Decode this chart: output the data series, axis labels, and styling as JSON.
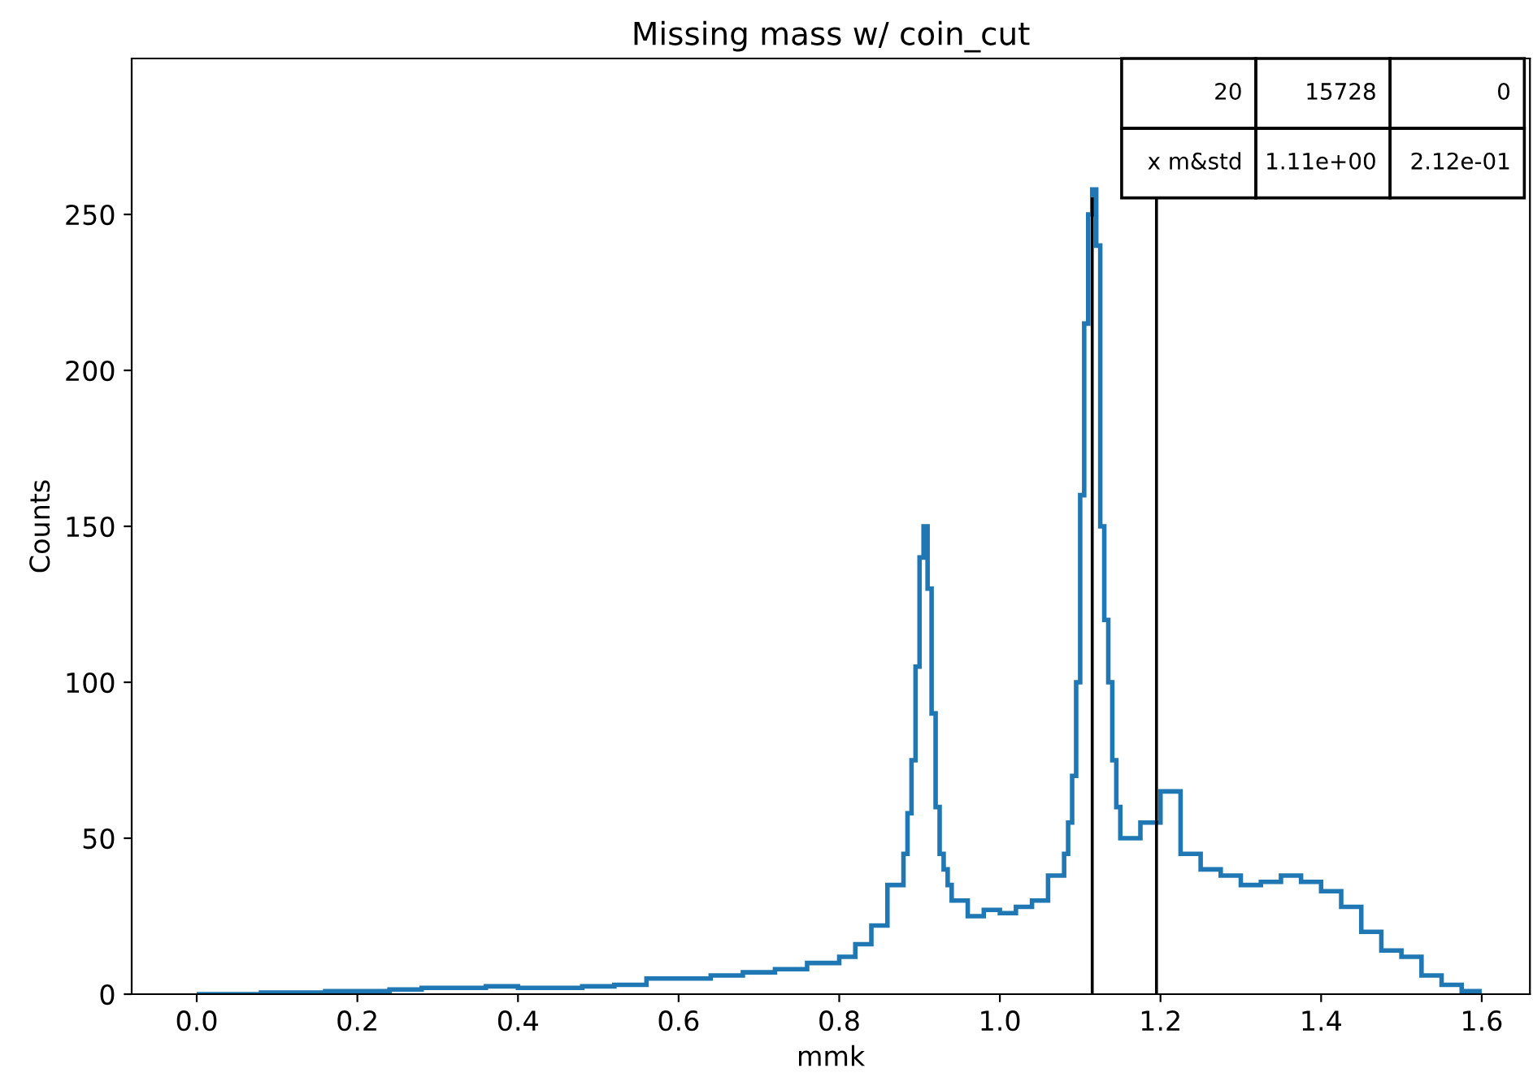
{
  "chart_data": {
    "type": "histogram",
    "title": "Missing mass w/ coin_cut",
    "xlabel": "mmk",
    "ylabel": "Counts",
    "bins": [
      0,
      0.04,
      0.08,
      0.12,
      0.16,
      0.2,
      0.24,
      0.28,
      0.32,
      0.36,
      0.4,
      0.44,
      0.48,
      0.52,
      0.56,
      0.6,
      0.64,
      0.68,
      0.72,
      0.76,
      0.8,
      0.82,
      0.84,
      0.86,
      0.88,
      0.885,
      0.89,
      0.895,
      0.9,
      0.905,
      0.91,
      0.915,
      0.92,
      0.925,
      0.93,
      0.935,
      0.94,
      0.96,
      0.98,
      1.0,
      1.02,
      1.04,
      1.06,
      1.08,
      1.085,
      1.09,
      1.095,
      1.1,
      1.105,
      1.11,
      1.115,
      1.12,
      1.125,
      1.13,
      1.135,
      1.14,
      1.145,
      1.15,
      1.175,
      1.2,
      1.225,
      1.25,
      1.275,
      1.3,
      1.325,
      1.35,
      1.375,
      1.4,
      1.425,
      1.45,
      1.475,
      1.5,
      1.525,
      1.55,
      1.575,
      1.6
    ],
    "values": [
      0,
      0,
      0.5,
      0.5,
      1,
      1,
      1.5,
      2,
      2,
      2.5,
      2,
      2,
      2.5,
      3,
      5,
      5,
      6,
      7,
      8,
      10,
      12,
      16,
      22,
      35,
      45,
      58,
      75,
      105,
      140,
      150,
      130,
      90,
      60,
      45,
      40,
      35,
      30,
      25,
      27,
      26,
      28,
      30,
      38,
      45,
      55,
      70,
      100,
      160,
      215,
      250,
      258,
      240,
      150,
      120,
      100,
      75,
      60,
      50,
      55,
      65,
      45,
      40,
      38,
      35,
      36,
      38,
      36,
      33,
      28,
      20,
      14,
      12,
      6,
      3,
      1
    ],
    "color": "#1f77b4",
    "xlim": [
      -0.081,
      1.66
    ],
    "ylim": [
      0,
      300
    ],
    "xticks": [
      {
        "value": 0,
        "label": "0.0"
      },
      0.2,
      0.4,
      0.6,
      0.8,
      {
        "value": 1,
        "label": "1.0"
      },
      1.2,
      1.4,
      1.6
    ],
    "yticks": [
      0,
      50,
      100,
      150,
      200,
      250
    ],
    "ref_lines": [
      {
        "axis": "x",
        "value": 1.115,
        "color": "#000000"
      },
      {
        "axis": "x",
        "value": 1.195,
        "color": "#000000"
      }
    ],
    "annotations": [
      "20",
      "15728",
      "0",
      "x m&std",
      "1.11e+00",
      "2.12e-01"
    ],
    "grid": false,
    "legend": false
  }
}
